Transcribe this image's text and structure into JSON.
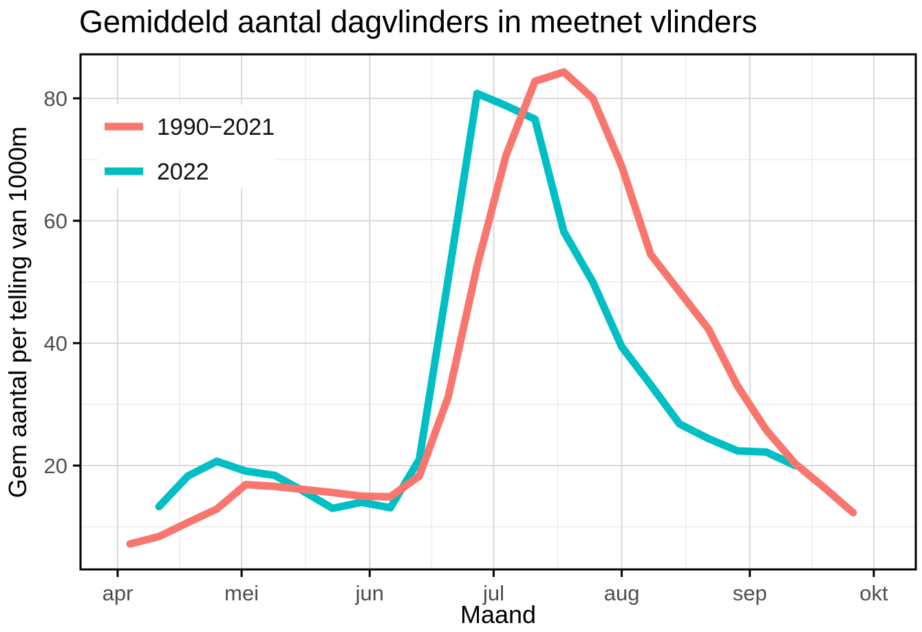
{
  "chart_data": {
    "type": "line",
    "title": "Gemiddeld aantal dagvlinders in meetnet vlinders",
    "xlabel": "Maand",
    "ylabel": "Gem aantal per telling van 1000m",
    "grid": true,
    "legend": {
      "position": "inside-top-left",
      "entries": [
        {
          "label": "1990−2021",
          "color": "#F8766D"
        },
        {
          "label": "2022",
          "color": "#00BFC4"
        }
      ]
    },
    "x_axis": {
      "unit": "days from 1 april",
      "tick_labels": [
        "apr",
        "mei",
        "jun",
        "jul",
        "aug",
        "sep",
        "okt"
      ],
      "tick_days": [
        0,
        30,
        61,
        91,
        122,
        153,
        183
      ],
      "minor_days": [
        15,
        45.5,
        76,
        106.5,
        137.5,
        168
      ]
    },
    "y_axis": {
      "ticks": [
        20,
        40,
        60,
        80
      ],
      "minor_ticks": [
        10,
        30,
        50,
        70
      ],
      "ylim": [
        3,
        87
      ]
    },
    "series": [
      {
        "name": "1990−2021",
        "color": "#F8766D",
        "x_days": [
          3,
          10,
          17,
          24,
          31,
          38,
          45,
          52,
          59,
          66,
          73,
          80,
          87,
          94,
          101,
          108,
          115,
          122,
          129,
          136,
          143,
          150,
          157,
          164,
          171,
          178
        ],
        "values": [
          7.2,
          8.4,
          10.7,
          12.9,
          16.9,
          16.6,
          16.1,
          15.6,
          15.0,
          14.9,
          18.3,
          31.2,
          52.6,
          70.7,
          82.8,
          84.3,
          80.0,
          68.9,
          54.5,
          48.4,
          42.3,
          33.0,
          25.8,
          20.3,
          16.4,
          12.3
        ]
      },
      {
        "name": "2022",
        "color": "#00BFC4",
        "x_days": [
          10,
          17,
          24,
          31,
          38,
          45,
          52,
          59,
          66,
          73,
          80,
          87,
          94,
          101,
          108,
          115,
          122,
          129,
          136,
          143,
          150,
          157,
          164
        ],
        "values": [
          13.3,
          18.3,
          20.7,
          19.1,
          18.4,
          15.8,
          13.0,
          14.0,
          13.1,
          21.0,
          50.5,
          80.8,
          78.8,
          76.6,
          58.2,
          50.0,
          39.4,
          33.2,
          26.8,
          24.4,
          22.4,
          22.2,
          20.0
        ]
      }
    ],
    "style": {
      "panel_background": "#ffffff",
      "panel_border": "#000000",
      "grid_major": "#d9d9d9",
      "grid_minor": "#ececec",
      "tick_mark": "#000000",
      "tick_text": "#4d4d4d",
      "line_width": 11
    }
  }
}
